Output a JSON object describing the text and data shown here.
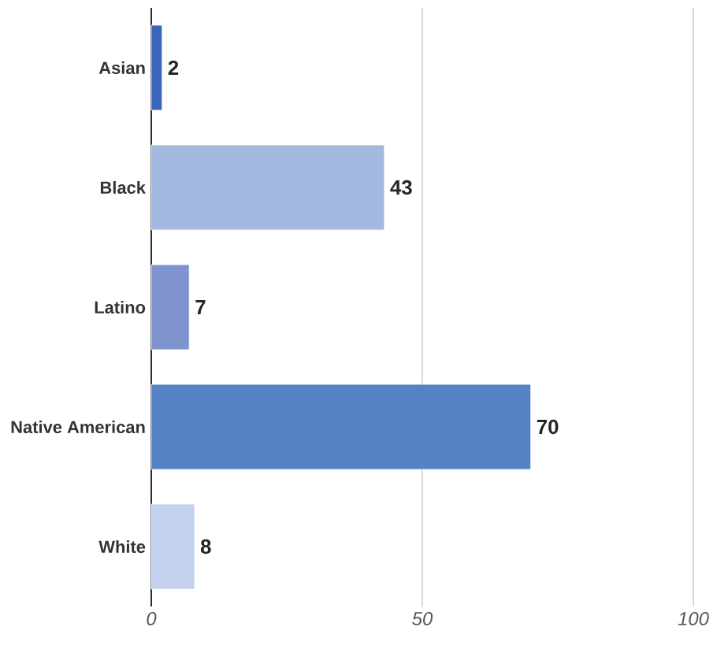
{
  "chart_data": {
    "type": "bar",
    "orientation": "horizontal",
    "categories": [
      "Asian",
      "Black",
      "Latino",
      "Native American",
      "White"
    ],
    "values": [
      2,
      43,
      7,
      70,
      8
    ],
    "colors": [
      "#3a64be",
      "#a3b9e0",
      "#7f93cf",
      "#5581c5",
      "#c3d1ee"
    ],
    "xlim": [
      0,
      100
    ],
    "xticks": [
      0,
      50,
      100
    ],
    "grid": "x",
    "data_labels": true
  }
}
